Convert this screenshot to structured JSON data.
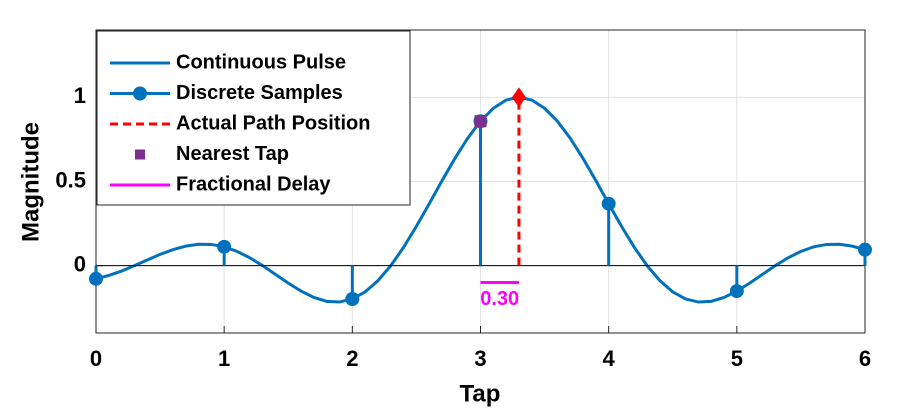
{
  "chart_data": {
    "type": "line",
    "xlabel": "Tap",
    "ylabel": "Magnitude",
    "xlim": [
      0,
      6
    ],
    "ylim": [
      -0.4,
      1.4
    ],
    "xticks": [
      0,
      1,
      2,
      3,
      4,
      5,
      6
    ],
    "yticks": [
      0,
      0.5,
      1
    ],
    "grid": true,
    "legend": "upper left",
    "series": [
      {
        "name": "Continuous Pulse",
        "style": "line",
        "color": "#0072bd",
        "x": [
          0,
          0.1,
          0.2,
          0.3,
          0.4,
          0.5,
          0.6,
          0.7,
          0.8,
          0.9,
          1,
          1.1,
          1.2,
          1.3,
          1.4,
          1.5,
          1.6,
          1.7,
          1.8,
          1.9,
          2,
          2.1,
          2.2,
          2.3,
          2.4,
          2.5,
          2.6,
          2.7,
          2.8,
          2.9,
          3,
          3.1,
          3.2,
          3.3,
          3.4,
          3.5,
          3.6,
          3.7,
          3.8,
          3.9,
          4,
          4.1,
          4.2,
          4.3,
          4.4,
          4.5,
          4.6,
          4.7,
          4.8,
          4.9,
          5,
          5.1,
          5.2,
          5.3,
          5.4,
          5.5,
          5.6,
          5.7,
          5.8,
          5.9,
          6
        ],
        "values": [
          -0.078,
          -0.058,
          -0.032,
          0,
          0.034,
          0.067,
          0.095,
          0.116,
          0.127,
          0.126,
          0.112,
          0.085,
          0.047,
          0,
          -0.052,
          -0.104,
          -0.151,
          -0.189,
          -0.212,
          -0.216,
          -0.198,
          -0.156,
          -0.089,
          0,
          0.109,
          0.234,
          0.368,
          0.505,
          0.637,
          0.757,
          0.858,
          0.935,
          0.984,
          1,
          0.984,
          0.935,
          0.858,
          0.757,
          0.637,
          0.505,
          0.368,
          0.234,
          0.109,
          0,
          -0.089,
          -0.156,
          -0.198,
          -0.216,
          -0.212,
          -0.189,
          -0.151,
          -0.104,
          -0.052,
          0,
          0.047,
          0.085,
          0.112,
          0.126,
          0.127,
          0.116,
          0.095
        ]
      },
      {
        "name": "Discrete Samples",
        "style": "stem",
        "color": "#0072bd",
        "x": [
          0,
          1,
          2,
          3,
          4,
          5,
          6
        ],
        "values": [
          -0.078,
          0.112,
          -0.198,
          0.858,
          0.368,
          -0.151,
          0.095
        ]
      },
      {
        "name": "Actual Path Position",
        "style": "dashed-diamond",
        "color": "#ff0000",
        "x": [
          3.3,
          3.3
        ],
        "values": [
          0,
          1
        ]
      },
      {
        "name": "Nearest Tap",
        "style": "square",
        "color": "#7e2f8e",
        "x": [
          3
        ],
        "values": [
          0.858
        ]
      },
      {
        "name": "Fractional Delay",
        "style": "span",
        "color": "#ff00ff",
        "x": [
          3,
          3.3
        ],
        "values": [
          -0.1,
          -0.1
        ],
        "annotation": "0.30"
      }
    ]
  }
}
